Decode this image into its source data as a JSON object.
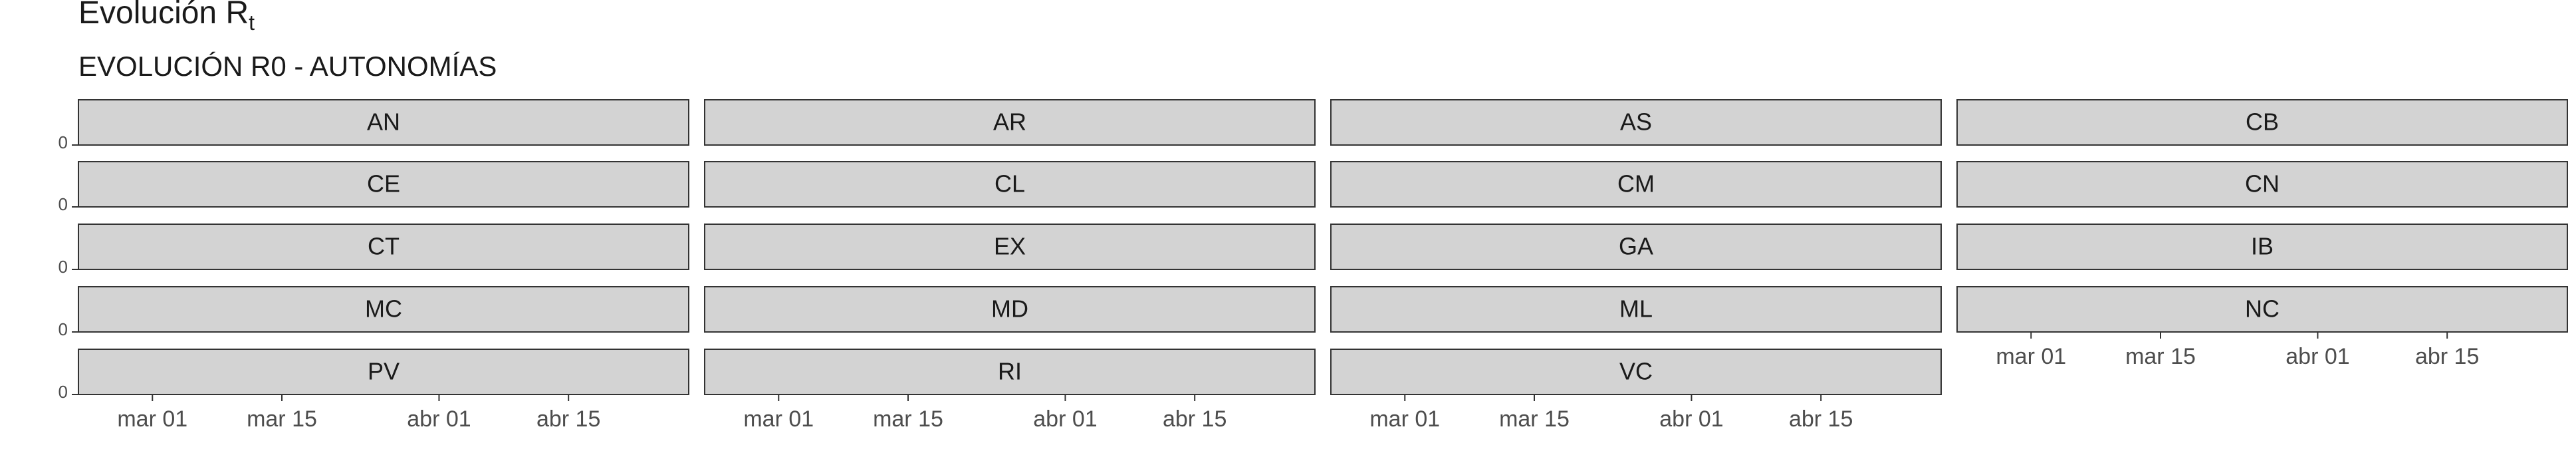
{
  "title": "Evolución R",
  "title_subscript": "t",
  "subtitle": "EVOLUCIÓN R0 - AUTONOMÍAS",
  "chart_data": {
    "type": "line",
    "facets": [
      "AN",
      "AR",
      "AS",
      "CB",
      "CE",
      "CL",
      "CM",
      "CN",
      "CT",
      "EX",
      "GA",
      "IB",
      "MC",
      "MD",
      "ML",
      "NC",
      "PV",
      "RI",
      "VC"
    ],
    "ncol": 4,
    "x_tick_labels": [
      "mar 01",
      "mar 15",
      "abr 01",
      "abr 15"
    ],
    "x_ticks": [
      "2020-03-01",
      "2020-03-15",
      "2020-04-01",
      "2020-04-15"
    ],
    "xlim": [
      "2020-02-22",
      "2020-04-28"
    ],
    "y_tick_label": "0",
    "series": [],
    "grid": false,
    "legend": "none",
    "colors": {
      "strip_fill": "#d3d3d3",
      "strip_border": "#333333",
      "text": "#1a1a1a",
      "tick_text": "#4d4d4d"
    }
  }
}
